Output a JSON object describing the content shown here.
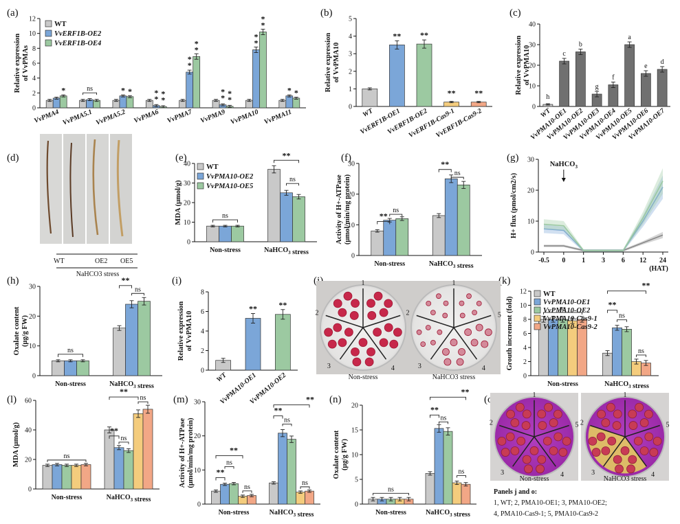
{
  "colors": {
    "wt": "#c9c9c9",
    "oe1": "#7ba6d8",
    "oe2": "#9cc9a1",
    "cas1": "#f4cc7d",
    "cas2": "#f2a786",
    "dark": "#707070",
    "line_wt": "#888888"
  },
  "panel_labels": [
    "(a)",
    "(b)",
    "(c)",
    "(d)",
    "(e)",
    "(f)",
    "(g)",
    "(h)",
    "(i)",
    "(j)",
    "(k)",
    "(l)",
    "(m)",
    "(n)",
    "(o)"
  ],
  "chart_data": [
    {
      "id": "a",
      "type": "bar",
      "ylabel": "Relative expression of VvPMAs",
      "ylim": [
        0,
        12
      ],
      "yticks": [
        "0",
        "2",
        "4",
        "6",
        "8",
        "10",
        "12"
      ],
      "categories": [
        "VvPMA4",
        "VvPMA5.1",
        "VvPMA5.2",
        "VvPMA6",
        "VvPMA7",
        "VvPMA9",
        "VvPMA10",
        "VvPMA11"
      ],
      "series": [
        {
          "name": "WT",
          "values": [
            1,
            1,
            1,
            1,
            1,
            1,
            1,
            1
          ]
        },
        {
          "name": "VvERF1B-OE2",
          "values": [
            1.3,
            1.1,
            1.6,
            0.3,
            4.8,
            0.4,
            7.8,
            1.6
          ]
        },
        {
          "name": "VvERF1B-OE4",
          "values": [
            1.6,
            1.0,
            1.5,
            0.15,
            6.9,
            0.2,
            10.2,
            1.3
          ]
        }
      ],
      "legend": [
        "WT",
        "VvERF1B-OE2",
        "VvERF1B-OE4"
      ],
      "annotations": {
        "sig": [
          "*",
          "**",
          "*",
          "* *",
          "* *",
          "* *",
          "* *",
          "* *",
          "* *",
          "* *",
          "* *",
          "*",
          "*"
        ],
        "ns": "ns"
      }
    },
    {
      "id": "b",
      "type": "bar",
      "ylabel": "Relative expression of VvPMA10",
      "ylim": [
        0,
        5
      ],
      "yticks": [
        "0",
        "1",
        "2",
        "3",
        "4",
        "5"
      ],
      "categories": [
        "WT",
        "VvERF1B-OE1",
        "VvERF1B-OE2",
        "VvERF1B-Cas9-1",
        "VvERF1B-Cas9-2"
      ],
      "values": [
        1.0,
        3.5,
        3.55,
        0.25,
        0.25
      ],
      "sig": [
        "**",
        "**",
        "**",
        "**"
      ]
    },
    {
      "id": "c",
      "type": "bar",
      "ylabel": "Relative expression of VvPMA10",
      "ylim": [
        0,
        40
      ],
      "yticks": [
        "0",
        "10",
        "20",
        "30",
        "40"
      ],
      "categories": [
        "WT",
        "VvPMA10-OE1",
        "VvPMA10-OE2",
        "VvPMA10-OE3",
        "VvPMA10-OE4",
        "VvPMA10-OE5",
        "VvPMA10-OE6",
        "VvPMA10-OE7"
      ],
      "values": [
        1,
        22,
        26.5,
        6,
        10.5,
        30,
        16,
        18
      ],
      "letters": [
        "h",
        "c",
        "b",
        "g",
        "f",
        "a",
        "e",
        "d"
      ]
    },
    {
      "id": "e",
      "type": "bar",
      "ylabel": "MDA (μmol/g)",
      "ylim": [
        0,
        40
      ],
      "yticks": [
        "0",
        "10",
        "20",
        "30",
        "40"
      ],
      "categories": [
        "Non-stress",
        "NaHCO3 stress"
      ],
      "series": [
        {
          "name": "WT",
          "values": [
            8,
            37
          ]
        },
        {
          "name": "VvPMA10-OE2",
          "values": [
            8,
            25
          ]
        },
        {
          "name": "VvPMA10-OE5",
          "values": [
            8,
            23
          ]
        }
      ],
      "legend": [
        "WT",
        "VvPMA10-OE2",
        "VvPMA10-OE5"
      ],
      "annotations": {
        "sig": "**",
        "ns": "ns"
      }
    },
    {
      "id": "f",
      "type": "bar",
      "ylabel": "Activity of H+-ATPase (μmol/min/mg protein)",
      "ylim": [
        0,
        30
      ],
      "yticks": [
        "0",
        "10",
        "20",
        "30"
      ],
      "categories": [
        "Non-stress",
        "NaHCO3 stress"
      ],
      "series": [
        {
          "name": "WT",
          "values": [
            8,
            13
          ]
        },
        {
          "name": "VvPMA10-OE2",
          "values": [
            11.5,
            25
          ]
        },
        {
          "name": "VvPMA10-OE5",
          "values": [
            12,
            23
          ]
        }
      ],
      "annotations": {
        "sig": "**",
        "ns": "ns"
      }
    },
    {
      "id": "g",
      "type": "area",
      "ylabel": "H+ flux (pmol/cm2/s)",
      "xlabel": "(HAT)",
      "ylim": [
        0,
        30
      ],
      "yticks": [
        "0",
        "10",
        "20",
        "30"
      ],
      "x": [
        "-0.5",
        "0",
        "1",
        "3",
        "6",
        "12",
        "24"
      ],
      "annotation": "NaHCO3",
      "series": [
        {
          "name": "WT",
          "values": [
            2,
            2,
            0.5,
            0.5,
            0.5,
            3,
            5.5
          ]
        },
        {
          "name": "VvPMA10-OE2",
          "values": [
            7.5,
            7,
            0.5,
            0.5,
            0.5,
            10,
            21
          ]
        },
        {
          "name": "VvPMA10-OE5",
          "values": [
            9,
            8.5,
            0.5,
            0.5,
            0.5,
            11,
            23
          ]
        }
      ]
    },
    {
      "id": "h",
      "type": "bar",
      "ylabel": "Oxalate content (μg/g FW)",
      "ylim": [
        0,
        30
      ],
      "yticks": [
        "0",
        "10",
        "20",
        "30"
      ],
      "categories": [
        "Non-stress",
        "NaHCO3 stress"
      ],
      "series": [
        {
          "name": "WT",
          "values": [
            5,
            16
          ]
        },
        {
          "name": "VvPMA10-OE2",
          "values": [
            5,
            24
          ]
        },
        {
          "name": "VvPMA10-OE5",
          "values": [
            5,
            25
          ]
        }
      ],
      "annotations": {
        "sig": "**",
        "ns": "ns"
      }
    },
    {
      "id": "i",
      "type": "bar",
      "ylabel": "Relative expression of VvPMA10",
      "ylim": [
        0,
        8
      ],
      "yticks": [
        "0",
        "2",
        "4",
        "6",
        "8"
      ],
      "categories": [
        "WT",
        "VvPMA10-OE1",
        "VvPMA10-OE2"
      ],
      "values": [
        1,
        5.3,
        5.7
      ],
      "sig": [
        "**",
        "**"
      ]
    },
    {
      "id": "k",
      "type": "bar",
      "ylabel": "Grouth increment (fold)",
      "ylim": [
        0,
        12
      ],
      "yticks": [
        "0",
        "2",
        "4",
        "6",
        "8",
        "10",
        "12"
      ],
      "categories": [
        "Non-stress",
        "NaHCO3 stress"
      ],
      "series": [
        {
          "name": "WT",
          "values": [
            8,
            3.2
          ]
        },
        {
          "name": "VvPMA10-OE1",
          "values": [
            8,
            6.8
          ]
        },
        {
          "name": "VvPMA10-OE2",
          "values": [
            8,
            6.6
          ]
        },
        {
          "name": "VvPMA10-Cas9-1",
          "values": [
            7.8,
            2
          ]
        },
        {
          "name": "VvPMA10-Cas9-2",
          "values": [
            8,
            1.8
          ]
        }
      ],
      "legend": [
        "WT",
        "VvPMA10-OE1",
        "VvPMA10-OE2",
        "VvPMA10-Cas9-1",
        "VvPMA10-Cas9-2"
      ],
      "annotations": {
        "sig": "**",
        "ns": "ns"
      }
    },
    {
      "id": "l",
      "type": "bar",
      "ylabel": "MDA (μmol/g)",
      "ylim": [
        0,
        60
      ],
      "yticks": [
        "0",
        "20",
        "40",
        "60"
      ],
      "categories": [
        "Non-stress",
        "NaHCO3 stress"
      ],
      "series": [
        {
          "name": "WT",
          "values": [
            16,
            40
          ]
        },
        {
          "name": "VvPMA10-OE1",
          "values": [
            16.5,
            28
          ]
        },
        {
          "name": "VvPMA10-OE2",
          "values": [
            16,
            26
          ]
        },
        {
          "name": "VvPMA10-Cas9-1",
          "values": [
            16,
            51
          ]
        },
        {
          "name": "VvPMA10-Cas9-2",
          "values": [
            16.5,
            54
          ]
        }
      ],
      "annotations": {
        "sig": "**",
        "ns": "ns"
      }
    },
    {
      "id": "m",
      "type": "bar",
      "ylabel": "Activity of H+-ATPase (μmol/min/mg protein)",
      "ylim": [
        0,
        30
      ],
      "yticks": [
        "0",
        "10",
        "20",
        "30"
      ],
      "categories": [
        "Non-stress",
        "NaHCO3 stress"
      ],
      "series": [
        {
          "name": "WT",
          "values": [
            3.8,
            6.2
          ]
        },
        {
          "name": "VvPMA10-OE1",
          "values": [
            5.8,
            20.8
          ]
        },
        {
          "name": "VvPMA10-OE2",
          "values": [
            6,
            19
          ]
        },
        {
          "name": "VvPMA10-Cas9-1",
          "values": [
            2.3,
            3.5
          ]
        },
        {
          "name": "VvPMA10-Cas9-2",
          "values": [
            2.5,
            3.8
          ]
        }
      ],
      "annotations": {
        "sig": "**",
        "ns": "ns"
      }
    },
    {
      "id": "n",
      "type": "bar",
      "ylabel": "Oxalate content (μg/g FW)",
      "ylim": [
        0,
        20
      ],
      "yticks": [
        "0",
        "5",
        "10",
        "15",
        "20"
      ],
      "categories": [
        "Non-stress",
        "NaHCO3 stress"
      ],
      "series": [
        {
          "name": "WT",
          "values": [
            1,
            6.2
          ]
        },
        {
          "name": "VvPMA10-OE1",
          "values": [
            1,
            15.3
          ]
        },
        {
          "name": "VvPMA10-OE2",
          "values": [
            1,
            14.7
          ]
        },
        {
          "name": "VvPMA10-Cas9-1",
          "values": [
            1,
            4.3
          ]
        },
        {
          "name": "VvPMA10-Cas9-2",
          "values": [
            1,
            4
          ]
        }
      ],
      "annotations": {
        "sig": "**",
        "ns": "ns"
      }
    }
  ],
  "photos": {
    "d": {
      "labels": [
        "WT",
        "OE2",
        "OE5"
      ],
      "caption": "NaHCO3 stress"
    },
    "j": {
      "captions": [
        "Non-stress",
        "NaHCO3 stress"
      ],
      "sectors": [
        "1",
        "2",
        "3",
        "4",
        "5"
      ]
    },
    "o": {
      "captions": [
        "Non-stress",
        "NaHCO3 stress"
      ],
      "sectors": [
        "1",
        "2",
        "3",
        "4",
        "5"
      ]
    }
  },
  "legend_note": {
    "title": "Panels j and o:",
    "line1": "1, WT; 2, PMA10-OE1; 3, PMA10-OE2;",
    "line2": "4, PMA10-Cas9-1; 5, PMA10-Cas9-2"
  }
}
